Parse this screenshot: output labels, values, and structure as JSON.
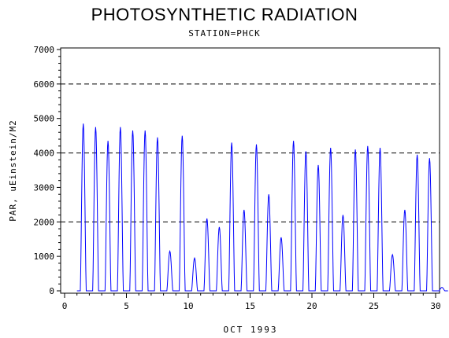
{
  "chart_data": {
    "type": "line",
    "title": "PHOTOSYNTHETIC RADIATION",
    "subtitle": "STATION=PHCK",
    "xlabel": "OCT 1993",
    "ylabel": "PAR, uEinstein/M2",
    "xlim": [
      0,
      30
    ],
    "ylim": [
      0,
      7000
    ],
    "x_ticks": [
      0,
      5,
      10,
      15,
      20,
      25,
      30
    ],
    "y_ticks": [
      0,
      1000,
      2000,
      3000,
      4000,
      5000,
      6000,
      7000
    ],
    "reference_lines": [
      2000,
      4000,
      6000
    ],
    "line_color": "#0000ff",
    "grid": false,
    "series": [
      {
        "days": [
          1,
          2,
          3,
          4,
          5,
          6,
          7,
          8,
          9,
          10,
          11,
          12,
          13,
          14,
          15,
          16,
          17,
          18,
          19,
          20,
          21,
          22,
          23,
          24,
          25,
          26,
          27,
          28,
          29,
          30
        ],
        "daily_peak": [
          4850,
          4750,
          4350,
          4750,
          4650,
          4650,
          4450,
          1150,
          4500,
          950,
          2100,
          1850,
          4300,
          2350,
          4250,
          2800,
          1550,
          4350,
          4050,
          3650,
          4150,
          2200,
          4100,
          4200,
          4150,
          1050,
          2350,
          3950,
          3850,
          100
        ]
      }
    ]
  }
}
